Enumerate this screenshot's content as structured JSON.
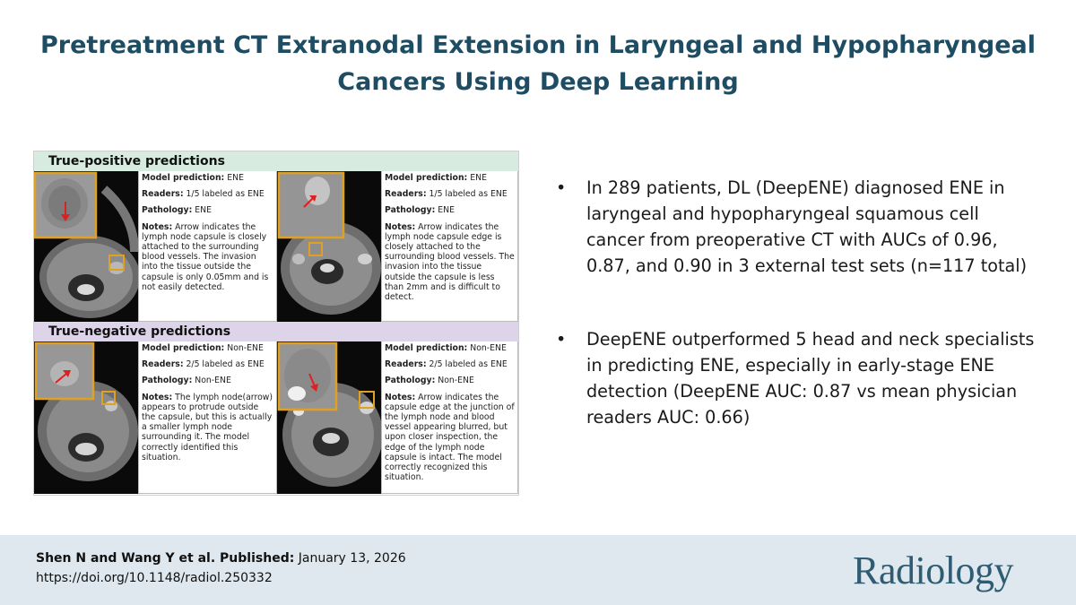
{
  "title": {
    "line1": "Pretreatment CT Extranodal Extension in Laryngeal and Hypopharyngeal",
    "line2": "Cancers Using Deep Learning"
  },
  "figure": {
    "positive_header": "True-positive predictions",
    "negative_header": "True-negative predictions",
    "labels": {
      "model": "Model prediction:",
      "readers": "Readers:",
      "pathology": "Pathology:",
      "notes": "Notes:"
    },
    "cases": [
      {
        "model": "ENE",
        "readers": "1/5 labeled as ENE",
        "pathology": "ENE",
        "notes": "Arrow indicates the lymph node capsule is closely attached to the surrounding blood vessels. The invasion into the tissue outside the capsule is only 0.05mm and is not easily detected."
      },
      {
        "model": "ENE",
        "readers": "1/5 labeled as ENE",
        "pathology": "ENE",
        "notes": "Arrow indicates the lymph node capsule edge is closely attached to the surrounding blood vessels. The invasion into the tissue outside the capsule is less than 2mm and is difficult to detect."
      },
      {
        "model": "Non-ENE",
        "readers": "2/5 labeled as ENE",
        "pathology": "Non-ENE",
        "notes": "The lymph node(arrow) appears to protrude outside the capsule, but this is actually a smaller lymph node surrounding it. The model correctly identified this situation."
      },
      {
        "model": "Non-ENE",
        "readers": "2/5 labeled as ENE",
        "pathology": "Non-ENE",
        "notes": "Arrow indicates the capsule edge at the junction of the lymph node and blood vessel appearing blurred, but upon closer inspection, the edge of the lymph node capsule is intact. The model correctly recognized this situation."
      }
    ]
  },
  "bullets": [
    "In 289 patients, DL (DeepENE) diagnosed ENE in laryngeal and hypopharyngeal squamous cell cancer from preoperative CT with AUCs of 0.96, 0.87, and 0.90 in 3 external test sets (n=117 total)",
    "DeepENE outperformed 5 head and neck specialists in predicting ENE, especially in early-stage ENE detection (DeepENE AUC: 0.87 vs mean physician readers AUC: 0.66)"
  ],
  "bullet_symbol": "•",
  "citation": {
    "authors": "Shen N and Wang Y et al. Published:",
    "date": "January 13, 2026",
    "doi": "https://doi.org/10.1148/radiol.250332"
  },
  "journal": "Radiology",
  "colors": {
    "title": "#1e4d63",
    "positive_band": "#d7ebe0",
    "negative_band": "#ded4ea",
    "highlight_box": "#e0a020",
    "arrow": "#e02020",
    "footer": "#dfe8ee",
    "logo": "#2f5c72"
  }
}
